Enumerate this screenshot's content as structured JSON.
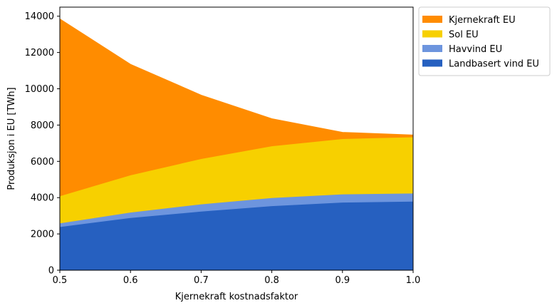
{
  "chart_data": {
    "type": "area",
    "stacked": true,
    "title": "",
    "xlabel": "Kjernekraft kostnadsfaktor",
    "ylabel": "Produksjon i EU [TWh]",
    "x": [
      0.5,
      0.6,
      0.7,
      0.8,
      0.9,
      1.0
    ],
    "xlim": [
      0.5,
      1.0
    ],
    "ylim": [
      0,
      14500
    ],
    "xticks": [
      "0.5",
      "0.6",
      "0.7",
      "0.8",
      "0.9",
      "1.0"
    ],
    "yticks": [
      "0",
      "2000",
      "4000",
      "6000",
      "8000",
      "10000",
      "12000",
      "14000"
    ],
    "xtick_values": [
      0.5,
      0.6,
      0.7,
      0.8,
      0.9,
      1.0
    ],
    "ytick_values": [
      0,
      2000,
      4000,
      6000,
      8000,
      10000,
      12000,
      14000
    ],
    "grid": false,
    "legend_position": "outside-upper-right",
    "series": [
      {
        "name": "Landbasert vind EU",
        "color": "#2660c0",
        "values": [
          2400,
          2900,
          3250,
          3550,
          3750,
          3800
        ]
      },
      {
        "name": "Havvind EU",
        "color": "#6d95de",
        "values": [
          200,
          300,
          400,
          450,
          450,
          450
        ]
      },
      {
        "name": "Sol EU",
        "color": "#f7d000",
        "values": [
          1500,
          2050,
          2500,
          2850,
          3050,
          3100
        ]
      },
      {
        "name": "Kjernekraft EU",
        "color": "#ff8c00",
        "values": [
          9750,
          6100,
          3500,
          1500,
          350,
          100
        ]
      }
    ]
  }
}
